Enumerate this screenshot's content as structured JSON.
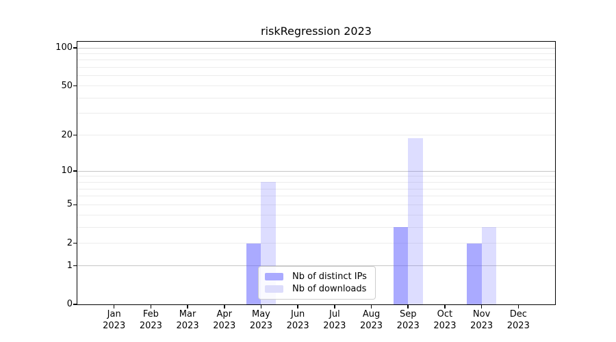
{
  "title": "riskRegression 2023",
  "chart_data": {
    "type": "bar",
    "title": "riskRegression 2023",
    "categories": [
      "Jan 2023",
      "Feb 2023",
      "Mar 2023",
      "Apr 2023",
      "May 2023",
      "Jun 2023",
      "Jul 2023",
      "Aug 2023",
      "Sep 2023",
      "Oct 2023",
      "Nov 2023",
      "Dec 2023"
    ],
    "month_labels": [
      "Jan",
      "Feb",
      "Mar",
      "Apr",
      "May",
      "Jun",
      "Jul",
      "Aug",
      "Sep",
      "Oct",
      "Nov",
      "Dec"
    ],
    "year_label": "2023",
    "series": [
      {
        "name": "Nb of distinct IPs",
        "values": [
          0,
          0,
          0,
          0,
          2,
          0,
          0,
          0,
          3,
          0,
          2,
          0
        ],
        "color": "rgba(100,100,255,0.55)",
        "legend_color": "#aaaaff"
      },
      {
        "name": "Nb of downloads",
        "values": [
          0,
          0,
          0,
          0,
          8,
          0,
          0,
          0,
          19,
          0,
          3,
          0
        ],
        "color": "rgba(100,100,255,0.22)",
        "legend_color": "#dcdcfb"
      }
    ],
    "y_axis": {
      "scale": "log1p",
      "tick_values": [
        0,
        1,
        2,
        5,
        10,
        20,
        50,
        100
      ],
      "major_grid_values": [
        1,
        10,
        100
      ],
      "minor_grid_values": [
        2,
        3,
        4,
        5,
        6,
        7,
        8,
        9,
        20,
        30,
        40,
        50,
        60,
        70,
        80,
        90
      ],
      "ylim": [
        0,
        112
      ]
    },
    "legend_position": "inside-bottom-center",
    "grid": true
  },
  "colors": {
    "background": "#ffffff",
    "bar_distinct_ips": "#aaaaff",
    "bar_downloads": "#dcdcfb",
    "major_grid": "#c6c6c6",
    "minor_grid": "#ececec",
    "spine": "#000000",
    "text": "#000000",
    "legend_border": "#cccccc"
  }
}
